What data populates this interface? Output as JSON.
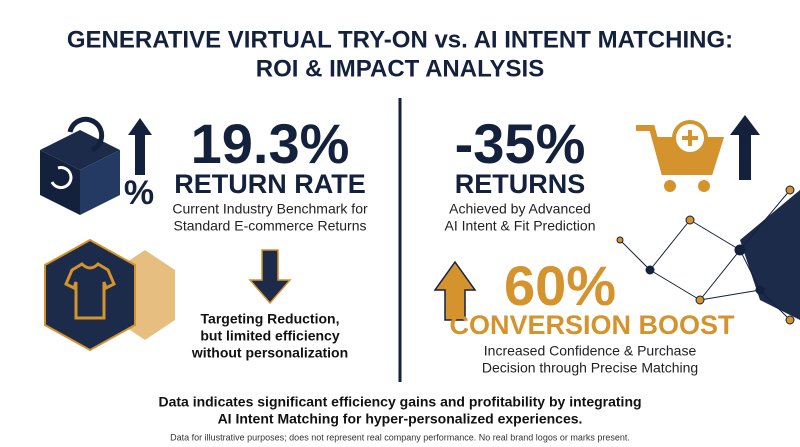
{
  "header": {
    "title_lines": [
      "GENERATIVE VIRTUAL TRY-ON vs. AI INTENT MATCHING:",
      "ROI & IMPACT ANALYSIS"
    ]
  },
  "left": {
    "stat": "19.3%",
    "stat_label": "RETURN RATE",
    "icon_label": "%",
    "description_lines": [
      "Current Industry Benchmark for",
      "Standard E-commerce Returns"
    ],
    "note_lines": [
      "Targeting Reduction,",
      "but limited efficiency",
      "without personalization"
    ]
  },
  "right": {
    "stat": "-35%",
    "stat_label": "RETURNS",
    "description_lines": [
      "Achieved by Advanced",
      "AI Intent & Fit Prediction"
    ],
    "boost": {
      "stat": "60%",
      "stat_label": "CONVERSION BOOST",
      "description_lines": [
        "Increased Confidence & Purchase",
        "Decision through Precise Matching"
      ]
    }
  },
  "footer": {
    "summary_lines": [
      "Data indicates significant efficiency gains and profitability by integrating",
      "AI Intent Matching for hyper-personalized experiences."
    ],
    "disclaimer": "Data for illustrative purposes; does not represent real company performance. No real brand logos or marks present."
  }
}
